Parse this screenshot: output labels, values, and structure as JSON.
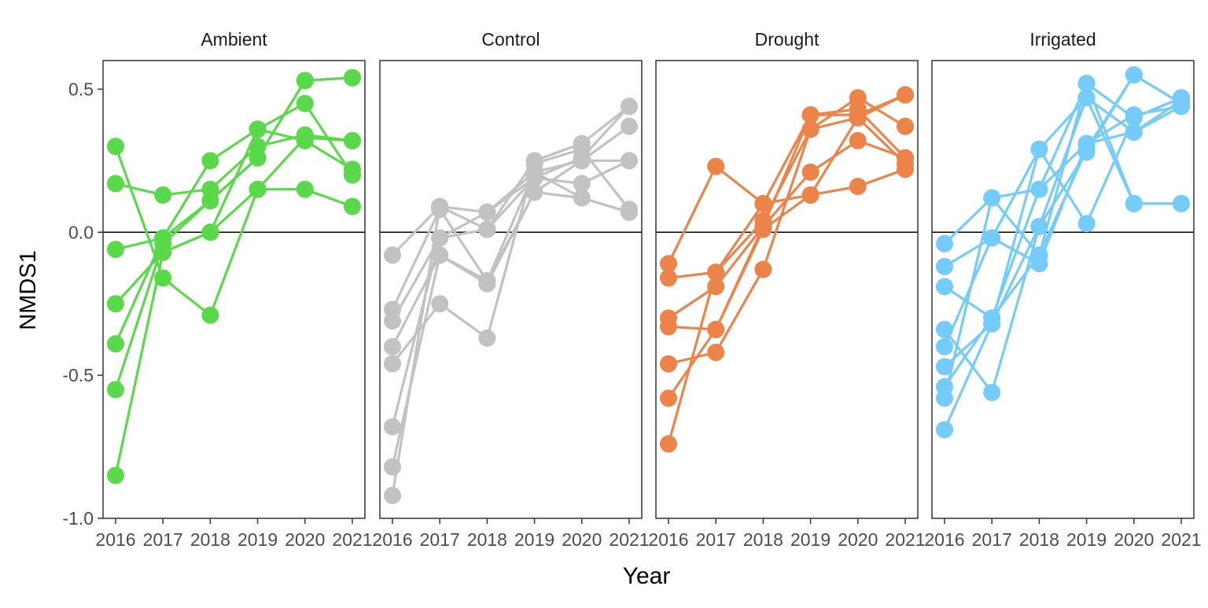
{
  "chart_data": {
    "type": "line",
    "ylabel": "NMDS1",
    "xlabel": "Year",
    "x": [
      2016,
      2017,
      2018,
      2019,
      2020,
      2021
    ],
    "x_tick_labels": [
      "2016",
      "2017",
      "2018",
      "2019",
      "2020",
      "2021"
    ],
    "ylim": [
      -1.0,
      0.6
    ],
    "y_ticks": [
      -1.0,
      -0.5,
      0.0,
      0.5
    ],
    "y_tick_labels": [
      "-1.0",
      "-0.5",
      "0.0",
      "0.5"
    ],
    "reference_line_y": 0,
    "grid": false,
    "legend": "none",
    "panels": [
      {
        "title": "Ambient",
        "color": "#5ad94a",
        "series": [
          {
            "values": [
              0.3,
              -0.16,
              -0.29,
              0.15,
              0.15,
              0.09
            ]
          },
          {
            "values": [
              0.17,
              0.13,
              0.15,
              0.3,
              0.34,
              0.32
            ]
          },
          {
            "values": [
              -0.06,
              -0.02,
              0.11,
              0.26,
              0.53,
              0.54
            ]
          },
          {
            "values": [
              -0.25,
              -0.07,
              0.0,
              0.36,
              0.32,
              0.22
            ]
          },
          {
            "values": [
              -0.39,
              -0.02,
              0.25,
              0.36,
              0.45,
              0.2
            ]
          },
          {
            "values": [
              -0.55,
              -0.04,
              0.11,
              0.26,
              0.53,
              0.54
            ]
          },
          {
            "values": [
              -0.85,
              -0.07,
              0.0,
              0.15,
              0.33,
              0.32
            ]
          }
        ]
      },
      {
        "title": "Control",
        "color": "#c2c2c2",
        "series": [
          {
            "values": [
              -0.08,
              0.09,
              0.01,
              0.25,
              0.31,
              0.44
            ]
          },
          {
            "values": [
              -0.27,
              0.08,
              -0.17,
              0.21,
              0.25,
              0.37
            ]
          },
          {
            "values": [
              -0.31,
              -0.02,
              0.07,
              0.19,
              0.17,
              0.25
            ]
          },
          {
            "values": [
              -0.4,
              -0.08,
              -0.18,
              0.14,
              0.12,
              0.07
            ]
          },
          {
            "values": [
              -0.46,
              -0.25,
              -0.37,
              0.24,
              0.29,
              0.08
            ]
          },
          {
            "values": [
              -0.68,
              -0.02,
              0.01,
              0.19,
              0.26,
              0.44
            ]
          },
          {
            "values": [
              -0.82,
              -0.08,
              -0.17,
              0.14,
              0.25,
              0.25
            ]
          },
          {
            "values": [
              -0.92,
              0.09,
              0.07,
              0.21,
              0.12,
              0.07
            ]
          }
        ]
      },
      {
        "title": "Drought",
        "color": "#ec844a",
        "series": [
          {
            "values": [
              -0.11,
              0.23,
              0.1,
              0.41,
              0.41,
              0.48
            ]
          },
          {
            "values": [
              -0.16,
              -0.14,
              0.04,
              0.36,
              0.47,
              0.37
            ]
          },
          {
            "values": [
              -0.3,
              -0.19,
              0.02,
              0.21,
              0.32,
              0.26
            ]
          },
          {
            "values": [
              -0.33,
              -0.34,
              0.01,
              0.13,
              0.16,
              0.22
            ]
          },
          {
            "values": [
              -0.46,
              -0.42,
              -0.13,
              0.36,
              0.4,
              0.24
            ]
          },
          {
            "values": [
              -0.58,
              -0.34,
              0.02,
              0.41,
              0.43,
              0.26
            ]
          },
          {
            "values": [
              -0.74,
              -0.14,
              0.1,
              0.13,
              0.4,
              0.48
            ]
          }
        ]
      },
      {
        "title": "Irrigated",
        "color": "#75cbf9",
        "series": [
          {
            "values": [
              -0.04,
              0.12,
              -0.08,
              0.29,
              0.55,
              0.45
            ]
          },
          {
            "values": [
              -0.12,
              -0.02,
              0.29,
              0.03,
              0.4,
              0.47
            ]
          },
          {
            "values": [
              -0.19,
              -0.3,
              0.15,
              0.52,
              0.1,
              0.1
            ]
          },
          {
            "values": [
              -0.34,
              -0.56,
              0.02,
              0.47,
              0.35,
              0.46
            ]
          },
          {
            "values": [
              -0.4,
              -0.02,
              -0.11,
              0.31,
              0.41,
              0.44
            ]
          },
          {
            "values": [
              -0.47,
              -0.32,
              0.02,
              0.28,
              0.55,
              0.45
            ]
          },
          {
            "values": [
              -0.54,
              -0.3,
              -0.08,
              0.52,
              0.4,
              0.47
            ]
          },
          {
            "values": [
              -0.58,
              0.12,
              0.15,
              0.31,
              0.35,
              0.44
            ]
          },
          {
            "values": [
              -0.69,
              -0.32,
              0.29,
              0.47,
              0.1,
              0.1
            ]
          }
        ]
      }
    ]
  }
}
